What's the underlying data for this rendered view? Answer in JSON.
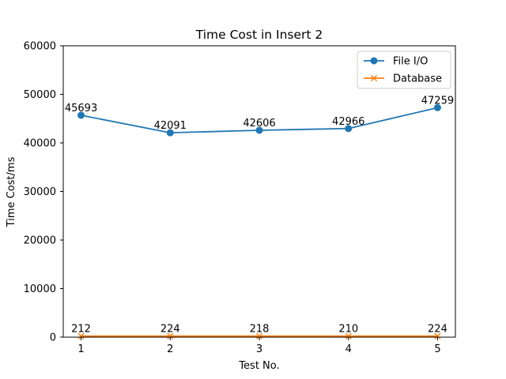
{
  "chart_data": {
    "type": "line",
    "title": "Time Cost in Insert 2",
    "xlabel": "Test No.",
    "ylabel": "Time Cost/ms",
    "x": [
      1,
      2,
      3,
      4,
      5
    ],
    "xticks": [
      "1",
      "2",
      "3",
      "4",
      "5"
    ],
    "ylim": [
      0,
      60000
    ],
    "yticks": [
      0,
      10000,
      20000,
      30000,
      40000,
      50000,
      60000
    ],
    "grid": false,
    "legend_position": "top-right",
    "series": [
      {
        "name": "File I/O",
        "values": [
          45693,
          42091,
          42606,
          42966,
          47259
        ],
        "color": "#1f77b4",
        "marker": "circle"
      },
      {
        "name": "Database",
        "values": [
          212,
          224,
          218,
          210,
          224
        ],
        "color": "#ff7f0e",
        "marker": "x"
      }
    ]
  }
}
